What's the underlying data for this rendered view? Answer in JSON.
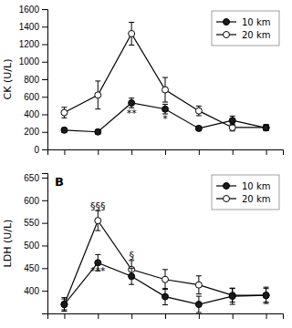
{
  "chart_data": [
    {
      "type": "line",
      "ylabel": "CK (U/L)",
      "categories": [
        null,
        null,
        null,
        null,
        null,
        null,
        null
      ],
      "series": [
        {
          "name": "10 km",
          "color": "#1a1a1a",
          "marker": "circle",
          "line_style": "solid",
          "values": [
            220,
            200,
            530,
            460,
            240,
            330,
            245
          ],
          "errors": [
            25,
            25,
            55,
            55,
            25,
            50,
            30
          ]
        },
        {
          "name": "20 km",
          "color": "#ffffff",
          "marker": "circle",
          "line_style": "solid",
          "values": [
            420,
            620,
            1320,
            680,
            440,
            250,
            250
          ],
          "errors": [
            60,
            160,
            130,
            140,
            55,
            40,
            35
          ]
        }
      ],
      "ylim": [
        0,
        1600
      ],
      "yticks": [
        0,
        200,
        400,
        600,
        800,
        1000,
        1200,
        1400,
        1600
      ],
      "annotations": [
        {
          "x": 2,
          "y": 460,
          "text": "**"
        },
        {
          "x": 3,
          "y": 390,
          "text": "*"
        }
      ],
      "legend": "upper right",
      "tick_labels": "y",
      "grid": false
    },
    {
      "type": "line",
      "title": "B",
      "ylabel": "LDH (U/L)",
      "categories": [
        null,
        null,
        null,
        null,
        null,
        null,
        null
      ],
      "series": [
        {
          "name": "10 km",
          "color": "#1a1a1a",
          "marker": "circle",
          "line_style": "solid",
          "values": [
            370,
            462,
            432,
            387,
            370,
            388,
            390
          ],
          "errors": [
            15,
            18,
            18,
            18,
            18,
            18,
            15
          ]
        },
        {
          "name": "20 km",
          "color": "#ffffff",
          "marker": "circle",
          "line_style": "solid",
          "values": [
            370,
            555,
            447,
            425,
            413,
            390,
            390
          ],
          "errors": [
            12,
            22,
            20,
            22,
            20,
            15,
            18
          ]
        }
      ],
      "ylim": [
        350,
        660
      ],
      "yticks": [
        400,
        450,
        500,
        550,
        600,
        650
      ],
      "annotations": [
        {
          "x": 1,
          "y": 580,
          "text": "§§§"
        },
        {
          "x": 1,
          "y": 437,
          "text": "***"
        },
        {
          "x": 2,
          "y": 470,
          "text": "§"
        }
      ],
      "legend": "upper right",
      "tick_labels": "y",
      "grid": false
    }
  ]
}
